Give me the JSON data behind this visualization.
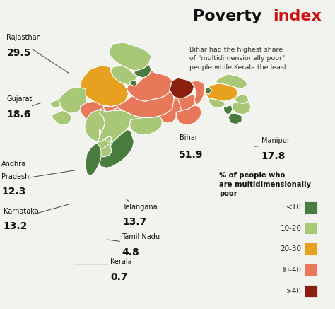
{
  "title_black": "Poverty ",
  "title_red": "index",
  "subtitle": "Bihar had the highest share\nof \"multidimensionally poor\"\npeople while Kerala the least",
  "background_color": "#f2f2ee",
  "colors": {
    "lt10": "#4a7c3f",
    "10_20": "#a8c878",
    "20_30": "#e8a020",
    "30_40": "#e8785a",
    "gt40": "#8b2010"
  },
  "legend_items": [
    {
      "label": "<10",
      "color": "#4a7c3f"
    },
    {
      "label": "10-20",
      "color": "#a8c878"
    },
    {
      "label": "20-30",
      "color": "#e8a020"
    },
    {
      "label": "30-40",
      "color": "#e8785a"
    },
    {
      "label": ">40",
      "color": "#8b2010"
    }
  ]
}
